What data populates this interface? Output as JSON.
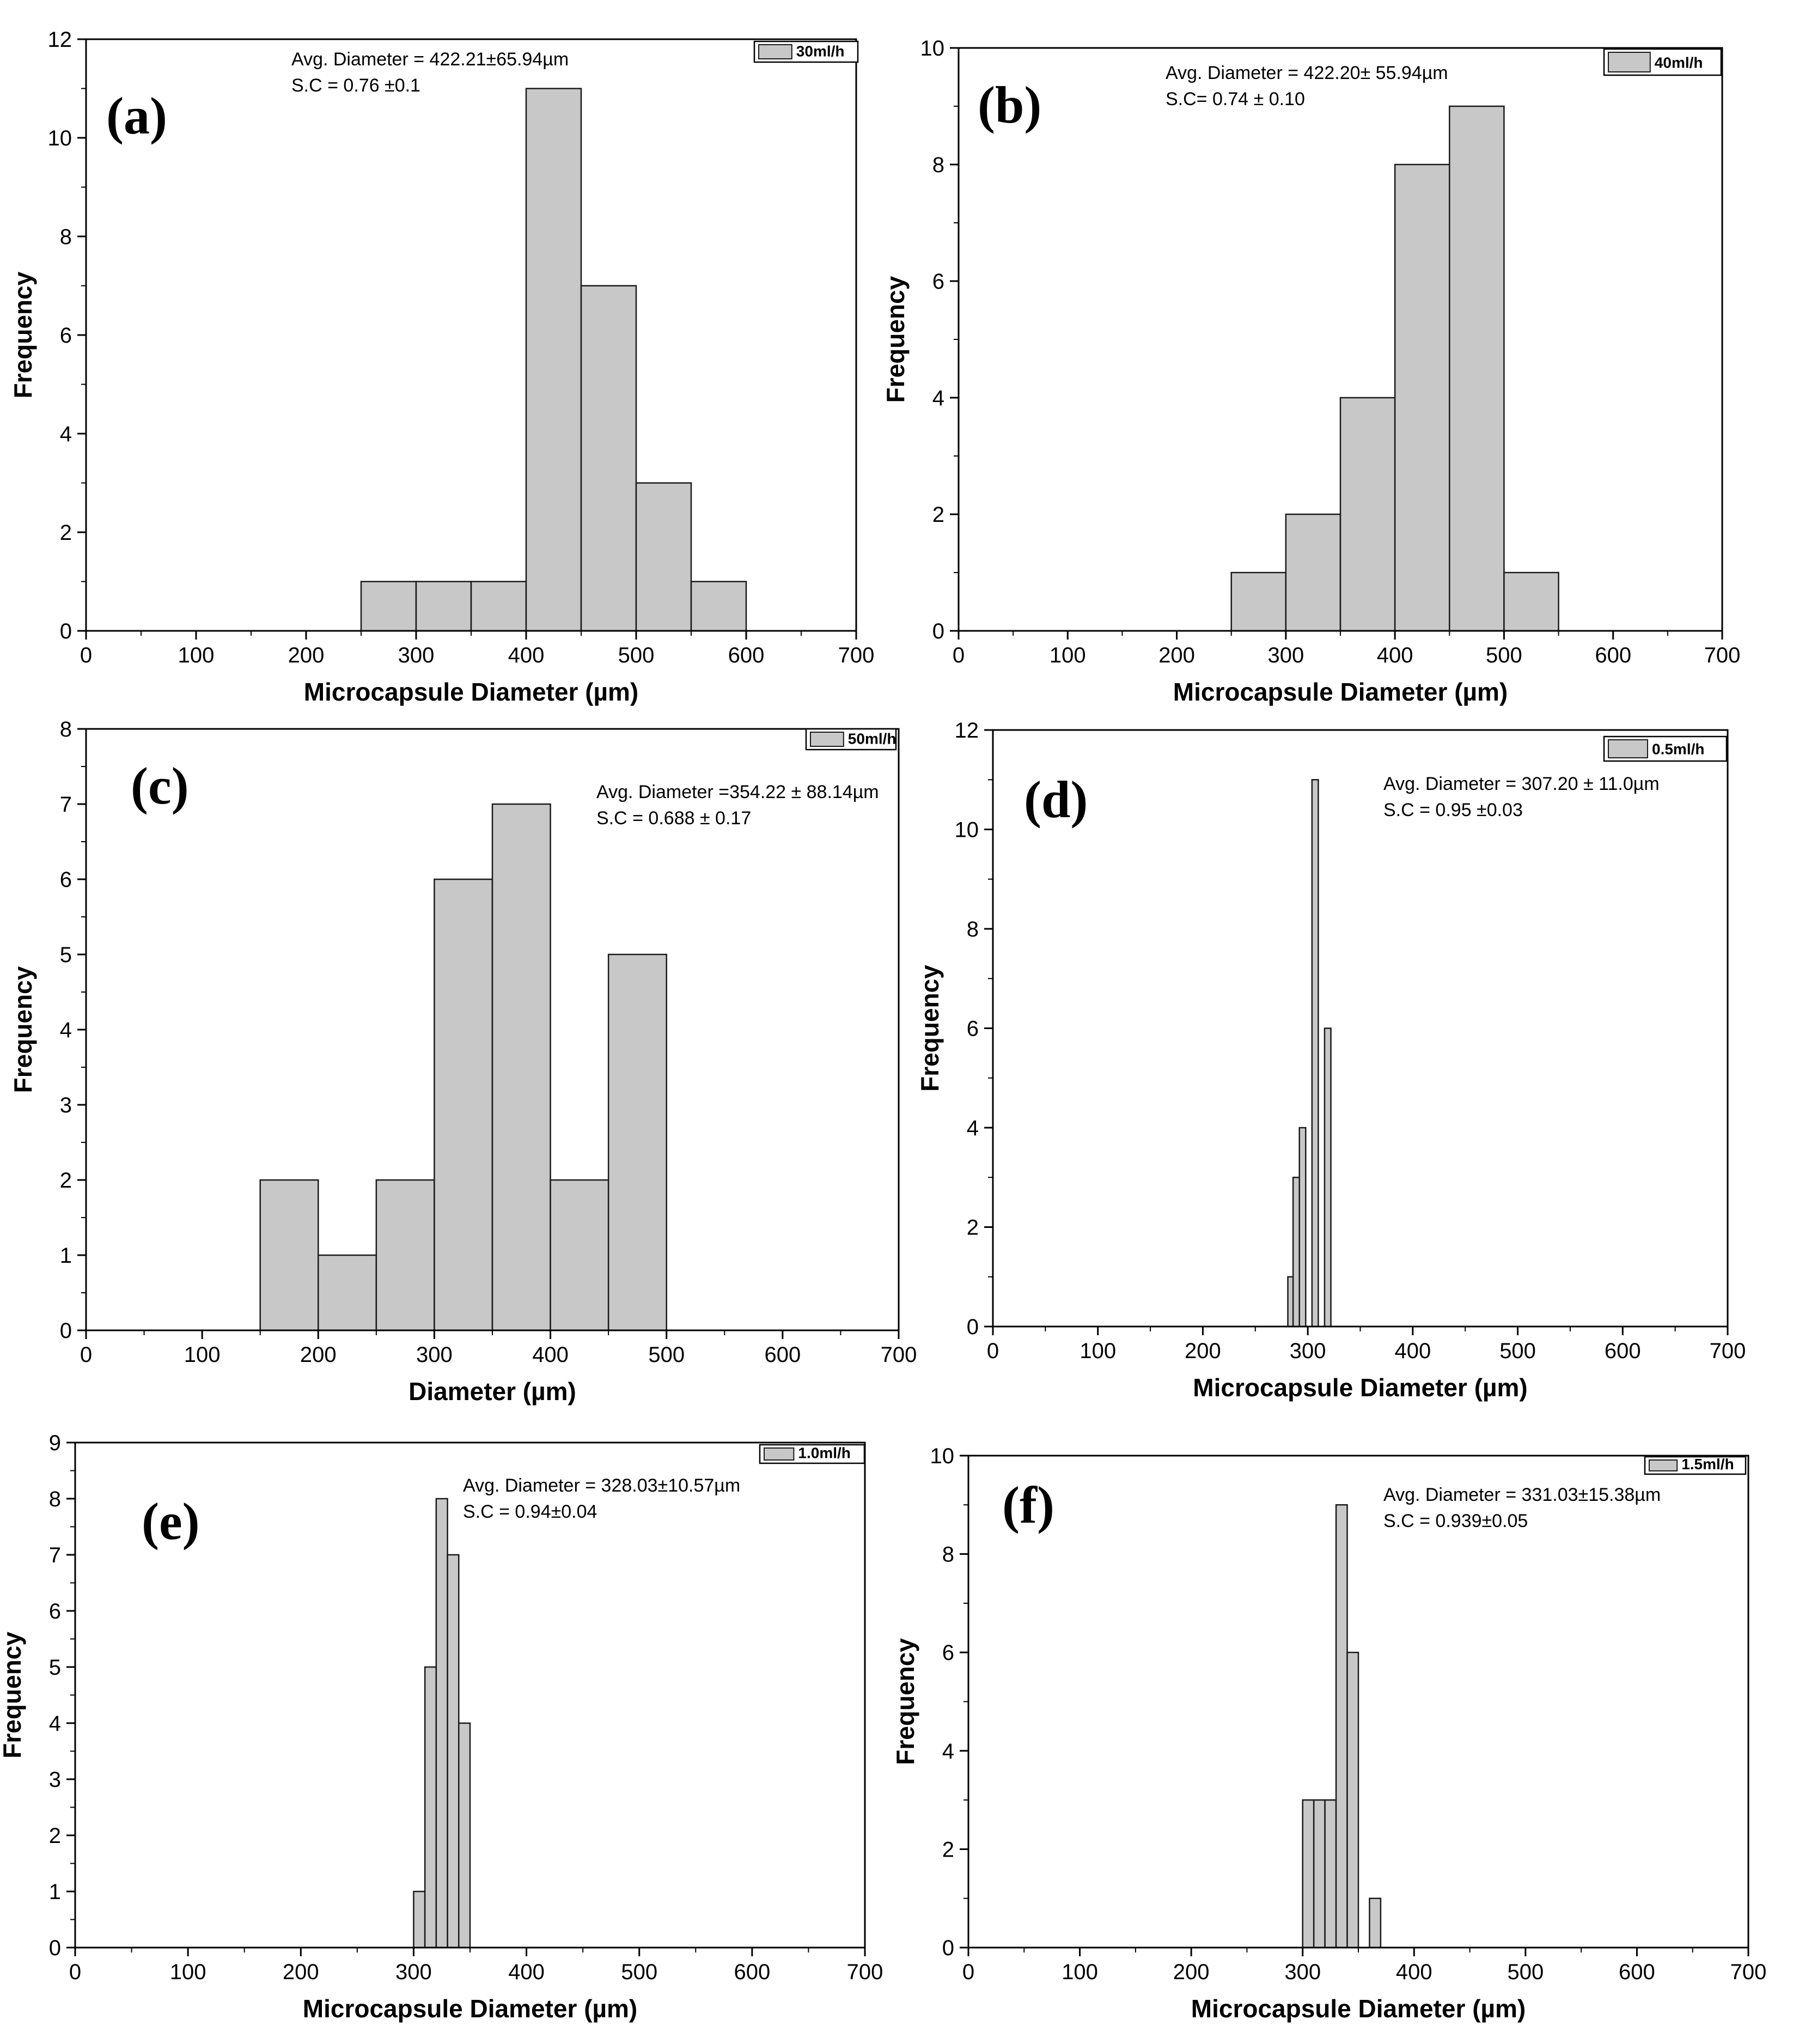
{
  "figure": {
    "bar_fill": "#c8c8c8",
    "bar_stroke": "#1a1a1a",
    "axis_color": "#000000",
    "background": "#ffffff"
  },
  "chart_data": [
    {
      "panel": "(a)",
      "type": "bar",
      "legend": "30ml/h",
      "annotations": [
        "Avg. Diameter = 422.21±65.94µm",
        "S.C = 0.76 ±0.1"
      ],
      "xlabel": "Microcapsule Diameter (µm)",
      "ylabel": "Frequency",
      "xlim": [
        0,
        700
      ],
      "ylim": [
        0,
        12
      ],
      "xticks": [
        0,
        100,
        200,
        300,
        400,
        500,
        600,
        700
      ],
      "yticks": [
        0,
        2,
        4,
        6,
        8,
        10,
        12
      ],
      "bins": [
        [
          250,
          300
        ],
        [
          300,
          350
        ],
        [
          350,
          400
        ],
        [
          400,
          450
        ],
        [
          450,
          500
        ],
        [
          500,
          550
        ],
        [
          550,
          600
        ]
      ],
      "values": [
        1,
        1,
        1,
        11,
        7,
        3,
        1
      ]
    },
    {
      "panel": "(b)",
      "type": "bar",
      "legend": "40ml/h",
      "annotations": [
        "Avg. Diameter = 422.20± 55.94µm",
        "S.C= 0.74 ± 0.10"
      ],
      "xlabel": "Microcapsule Diameter (µm)",
      "ylabel": "Frequency",
      "xlim": [
        0,
        700
      ],
      "ylim": [
        0,
        10
      ],
      "xticks": [
        0,
        100,
        200,
        300,
        400,
        500,
        600,
        700
      ],
      "yticks": [
        0,
        2,
        4,
        6,
        8,
        10
      ],
      "bins": [
        [
          250,
          300
        ],
        [
          300,
          350
        ],
        [
          350,
          400
        ],
        [
          400,
          450
        ],
        [
          450,
          500
        ],
        [
          500,
          550
        ]
      ],
      "values": [
        1,
        2,
        4,
        8,
        9,
        1
      ]
    },
    {
      "panel": "(c)",
      "type": "bar",
      "legend": "50ml/h",
      "annotations": [
        "Avg. Diameter =354.22 ± 88.14µm",
        "S.C = 0.688 ± 0.17"
      ],
      "xlabel": "Diameter (µm)",
      "ylabel": "Frequency",
      "xlim": [
        0,
        700
      ],
      "ylim": [
        0,
        8
      ],
      "xticks": [
        0,
        100,
        200,
        300,
        400,
        500,
        600,
        700
      ],
      "yticks": [
        0,
        1,
        2,
        3,
        4,
        5,
        6,
        7,
        8
      ],
      "bins": [
        [
          150,
          200
        ],
        [
          200,
          250
        ],
        [
          250,
          300
        ],
        [
          300,
          350
        ],
        [
          350,
          400
        ],
        [
          400,
          450
        ],
        [
          450,
          500
        ]
      ],
      "values": [
        2,
        1,
        2,
        6,
        7,
        2,
        5
      ]
    },
    {
      "panel": "(d)",
      "type": "bar",
      "legend": "0.5ml/h",
      "annotations": [
        "Avg. Diameter = 307.20 ± 11.0µm",
        "S.C = 0.95 ±0.03"
      ],
      "xlabel": "Microcapsule Diameter (µm)",
      "ylabel": "Frequency",
      "xlim": [
        0,
        700
      ],
      "ylim": [
        0,
        12
      ],
      "xticks": [
        0,
        100,
        200,
        300,
        400,
        500,
        600,
        700
      ],
      "yticks": [
        0,
        2,
        4,
        6,
        8,
        10,
        12
      ],
      "bins": [
        [
          281,
          286
        ],
        [
          286,
          292
        ],
        [
          292,
          298
        ],
        [
          298,
          304
        ],
        [
          304,
          310
        ],
        [
          310,
          316
        ],
        [
          316,
          322
        ]
      ],
      "values": [
        1,
        3,
        4,
        0,
        11,
        0,
        6
      ]
    },
    {
      "panel": "(e)",
      "type": "bar",
      "legend": "1.0ml/h",
      "annotations": [
        "Avg. Diameter = 328.03±10.57µm",
        "S.C = 0.94±0.04"
      ],
      "xlabel": "Microcapsule Diameter (µm)",
      "ylabel": "Frequency",
      "xlim": [
        0,
        700
      ],
      "ylim": [
        0,
        9
      ],
      "xticks": [
        0,
        100,
        200,
        300,
        400,
        500,
        600,
        700
      ],
      "yticks": [
        0,
        1,
        2,
        3,
        4,
        5,
        6,
        7,
        8,
        9
      ],
      "bins": [
        [
          300,
          310
        ],
        [
          310,
          320
        ],
        [
          320,
          330
        ],
        [
          330,
          340
        ],
        [
          340,
          350
        ]
      ],
      "values": [
        1,
        5,
        8,
        7,
        4
      ]
    },
    {
      "panel": "(f)",
      "type": "bar",
      "legend": "1.5ml/h",
      "annotations": [
        "Avg. Diameter = 331.03±15.38µm",
        "S.C = 0.939±0.05"
      ],
      "xlabel": "Microcapsule Diameter (µm)",
      "ylabel": "Frequency",
      "xlim": [
        0,
        700
      ],
      "ylim": [
        0,
        10
      ],
      "xticks": [
        0,
        100,
        200,
        300,
        400,
        500,
        600,
        700
      ],
      "yticks": [
        0,
        2,
        4,
        6,
        8,
        10
      ],
      "bins": [
        [
          300,
          310
        ],
        [
          310,
          320
        ],
        [
          320,
          330
        ],
        [
          330,
          340
        ],
        [
          340,
          350
        ],
        [
          350,
          360
        ],
        [
          360,
          370
        ]
      ],
      "values": [
        3,
        3,
        3,
        9,
        6,
        0,
        1
      ]
    }
  ]
}
